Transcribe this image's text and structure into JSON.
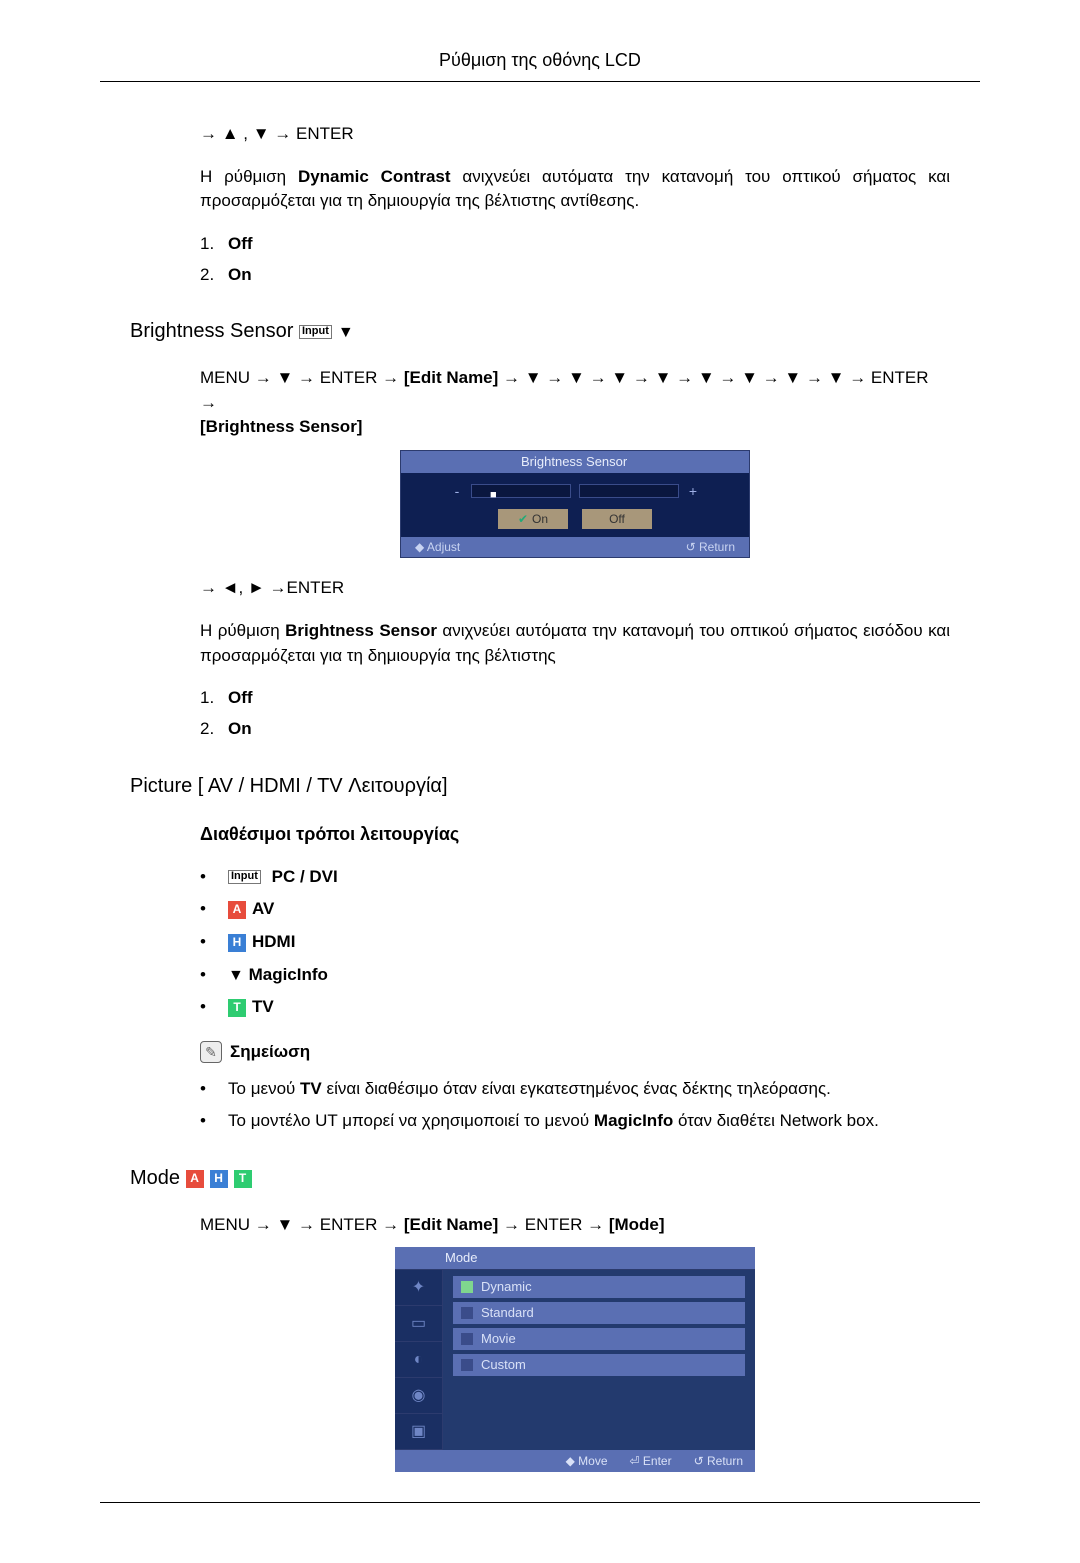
{
  "header": {
    "title": "Ρύθμιση της οθόνης LCD"
  },
  "nav1": {
    "line": "→ ▲ , ▼ → ENTER"
  },
  "dynamic_contrast": {
    "para": "Η ρύθμιση Dynamic Contrast ανιχνεύει αυτόματα την κατανομή του οπτικού σήματος και προσαρμόζεται για τη δημιουργία της βέλτιστης αντίθεσης.",
    "bold_term": "Dynamic Contrast",
    "list": [
      {
        "n": "1.",
        "label": "Off"
      },
      {
        "n": "2.",
        "label": "On"
      }
    ]
  },
  "brightness_sensor": {
    "heading": "Brightness Sensor",
    "heading_badges": [
      "Input",
      "▼"
    ],
    "nav_prefix": "MENU → ▼ → ENTER → ",
    "edit_name": "[Edit Name]",
    "nav_arrows": " → ▼ → ▼ → ▼ → ▼ → ▼ → ▼ → ▼ → ▼ → ENTER → ",
    "nav_tail": "[Brightness Sensor]",
    "ui": {
      "title": "Brightness Sensor",
      "on": "On",
      "off": "Off",
      "adjust": "◆ Adjust",
      "return": "↺ Return"
    },
    "nav2": "→ ◄, ► →ENTER",
    "para": "Η ρύθμιση Brightness Sensor ανιχνεύει αυτόματα την κατανομή του οπτικού σήματος εισόδου και προσαρμόζεται για τη δημιουργία της βέλτιστης",
    "bold_term": "Brightness Sensor",
    "list": [
      {
        "n": "1.",
        "label": "Off"
      },
      {
        "n": "2.",
        "label": "On"
      }
    ]
  },
  "picture": {
    "heading": "Picture [ AV / HDMI / TV Λειτουργία]",
    "sub": "Διαθέσιμοι τρόποι λειτουργίας",
    "modes": [
      {
        "badge": "Input",
        "label": "PC / DVI",
        "type": "input"
      },
      {
        "badge": "A",
        "label": "AV",
        "type": "a"
      },
      {
        "badge": "H",
        "label": "HDMI",
        "type": "h"
      },
      {
        "badge": "▼",
        "label": "MagicInfo",
        "type": "m"
      },
      {
        "badge": "T",
        "label": "TV",
        "type": "t"
      }
    ],
    "note_label": "Σημείωση",
    "notes": [
      "Το μενού TV είναι διαθέσιμο όταν είναι εγκατεστημένος ένας δέκτης τηλεόρασης.",
      "Το μοντέλο UT μπορεί να χρησιμοποιεί το μενού MagicInfo όταν διαθέτει Network box."
    ],
    "note_bold": {
      "tv": "TV",
      "magicinfo": "MagicInfo"
    }
  },
  "mode": {
    "heading": "Mode",
    "badges": [
      "A",
      "H",
      "T"
    ],
    "nav_prefix": "MENU → ▼ → ENTER → ",
    "edit_name": "[Edit Name]",
    "nav_mid": " → ENTER → ",
    "mode_br": "[Mode]",
    "ui": {
      "title": "Mode",
      "items": [
        "Dynamic",
        "Standard",
        "Movie",
        "Custom"
      ],
      "footer": {
        "move": "◆ Move",
        "enter": "⏎ Enter",
        "return": "↺ Return"
      }
    }
  },
  "colors": {
    "page_bg": "#ffffff",
    "text": "#000000",
    "ui_bg_dark": "#0e1f52",
    "ui_bar": "#5a6fb3",
    "ui_side": "#1a2f63",
    "badge_a": "#e74c3c",
    "badge_h": "#3a7fd5",
    "badge_t": "#2ecc71"
  }
}
